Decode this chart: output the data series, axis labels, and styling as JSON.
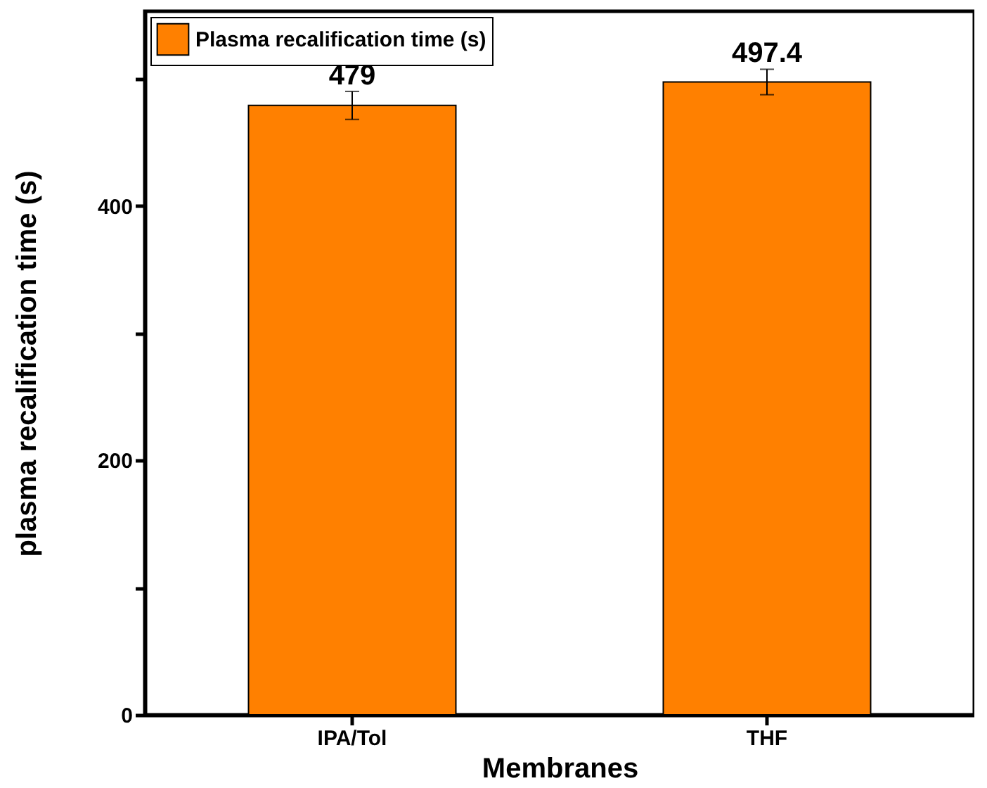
{
  "chart_data": {
    "type": "bar",
    "xlabel": "Membranes",
    "ylabel": "plasma recalification time (s)",
    "categories": [
      "IPA/Tol",
      "THF"
    ],
    "series": [
      {
        "name": "Plasma recalification time (s)",
        "color": "#ff8000",
        "values": [
          479,
          497.4
        ],
        "errors": [
          11,
          10
        ]
      }
    ],
    "ylim": [
      0,
      553
    ],
    "yticks": [
      0,
      {
        "value": 100,
        "label": null
      },
      200,
      {
        "value": 300,
        "label": null
      },
      400,
      {
        "value": 500,
        "label": null
      }
    ],
    "data_labels": true,
    "grid": false,
    "legend": "top left"
  }
}
